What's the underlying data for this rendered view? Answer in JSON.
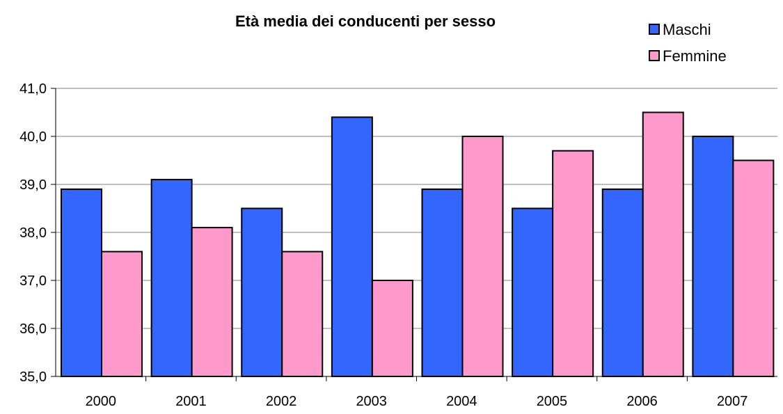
{
  "chart_data": {
    "type": "bar",
    "title": "Età media dei conducenti per sesso",
    "xlabel": "",
    "ylabel": "",
    "categories": [
      "2000",
      "2001",
      "2002",
      "2003",
      "2004",
      "2005",
      "2006",
      "2007"
    ],
    "series": [
      {
        "name": "Maschi",
        "color": "#3366FF",
        "values": [
          38.9,
          39.1,
          38.5,
          40.4,
          38.9,
          38.5,
          38.9,
          40.0
        ]
      },
      {
        "name": "Femmine",
        "color": "#FF99CC",
        "values": [
          37.6,
          38.1,
          37.6,
          37.0,
          40.0,
          39.7,
          40.5,
          39.5
        ]
      }
    ],
    "ylim": [
      35,
      41
    ],
    "yticks": [
      "35,0",
      "36,0",
      "37,0",
      "38,0",
      "39,0",
      "40,0",
      "41,0"
    ],
    "grid": true,
    "legend": "top-right"
  }
}
